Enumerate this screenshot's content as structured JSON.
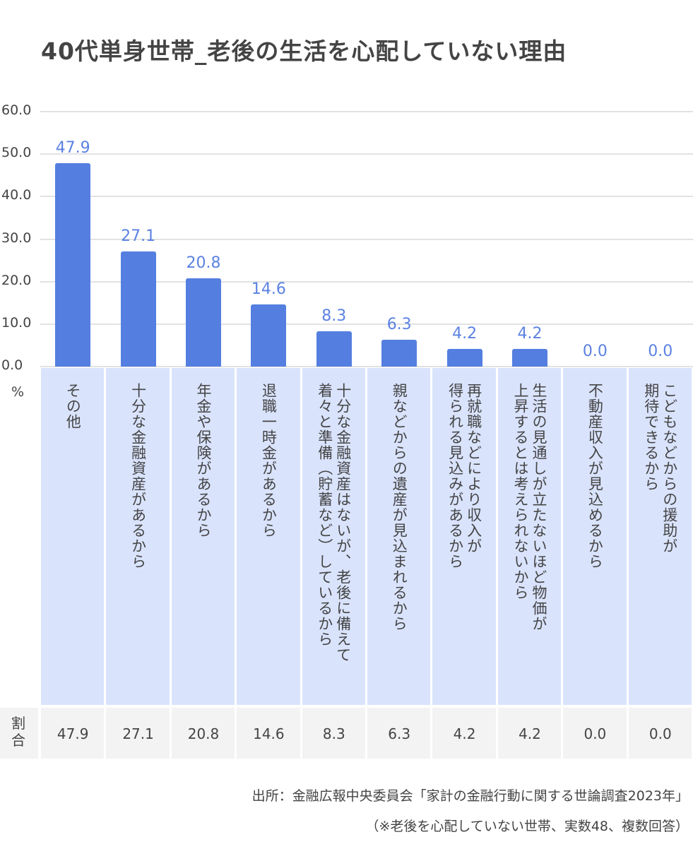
{
  "chart_data": {
    "type": "bar",
    "title": "40代単身世帯_老後の生活を心配していない理由",
    "ylabel": "%",
    "ylim": [
      0,
      60
    ],
    "yticks": [
      "0.0",
      "10.0",
      "20.0",
      "30.0",
      "40.0",
      "50.0",
      "60.0"
    ],
    "grid": true,
    "categories": [
      "その他",
      "十分な金融資産があるから",
      "年金や保険があるから",
      "退職一時金があるから",
      "十分な金融資産はないが、老後に備えて\n着々と準備（貯蓄など）しているから",
      "親などからの遺産が見込まれるから",
      "再就職などにより収入が\n得られる見込みがあるから",
      "生活の見通しが立たないほど物価が\n上昇するとは考えられないから",
      "不動産収入が見込めるから",
      "こどもなどからの援助が\n期待できるから"
    ],
    "values": [
      47.9,
      27.1,
      20.8,
      14.6,
      8.3,
      6.3,
      4.2,
      4.2,
      0.0,
      0.0
    ],
    "value_labels": [
      "47.9",
      "27.1",
      "20.8",
      "14.6",
      "8.3",
      "6.3",
      "4.2",
      "4.2",
      "0.0",
      "0.0"
    ],
    "table_header": "割合",
    "colors": {
      "bar": "#547fe0",
      "label": "#5b82e2",
      "category_bg": "#d9e3fc",
      "table_bg": "#f3f3f3"
    }
  },
  "source": {
    "line1": "出所：金融広報中央委員会「家計の金融行動に関する世論調査2023年」",
    "line2": "（※老後を心配していない世帯、実数48、複数回答）"
  }
}
